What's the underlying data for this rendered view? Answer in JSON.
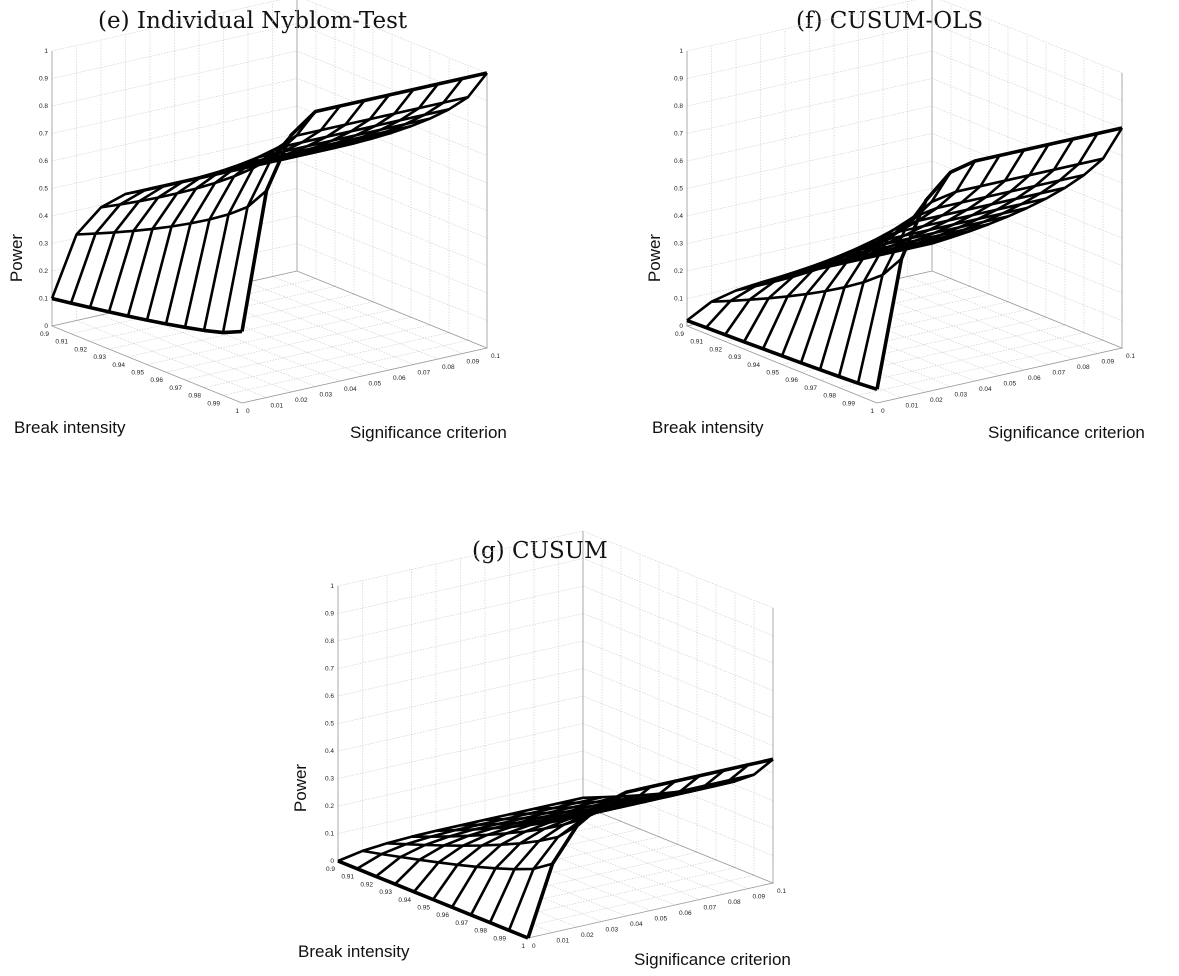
{
  "chart_data": [
    {
      "type": "surface",
      "title": "(e) Individual Nyblom-Test",
      "xlabel": "Break intensity",
      "ylabel": "Significance criterion",
      "zlabel": "Power",
      "x_ticks": [
        "1",
        "0.99",
        "0.98",
        "0.97",
        "0.96",
        "0.95",
        "0.94",
        "0.93",
        "0.92",
        "0.91",
        "0.9"
      ],
      "y_ticks": [
        "0",
        "0.01",
        "0.02",
        "0.03",
        "0.04",
        "0.05",
        "0.06",
        "0.07",
        "0.08",
        "0.09",
        "0.1"
      ],
      "z_ticks": [
        "0",
        "0.1",
        "0.2",
        "0.3",
        "0.4",
        "0.5",
        "0.6",
        "0.7",
        "0.8",
        "0.9",
        "1"
      ],
      "x": [
        1,
        0.99,
        0.98,
        0.97,
        0.96,
        0.95,
        0.94,
        0.93,
        0.92,
        0.91,
        0.9
      ],
      "y": [
        0,
        0.01,
        0.02,
        0.03,
        0.04,
        0.05,
        0.06,
        0.07,
        0.08,
        0.09,
        0.1
      ],
      "xlim": [
        0.9,
        1
      ],
      "ylim": [
        0,
        0.1
      ],
      "zlim": [
        0,
        1
      ],
      "surface_model": {
        "base": 0.26,
        "peak": 1.0,
        "low_corner": 0.1,
        "low_peak": 0.42,
        "bend": 0.3
      },
      "grid": true
    },
    {
      "type": "surface",
      "title": "(f) CUSUM-OLS",
      "xlabel": "Break intensity",
      "ylabel": "Significance criterion",
      "zlabel": "Power",
      "x_ticks": [
        "1",
        "0.99",
        "0.98",
        "0.97",
        "0.96",
        "0.95",
        "0.94",
        "0.93",
        "0.92",
        "0.91",
        "0.9"
      ],
      "y_ticks": [
        "0",
        "0.01",
        "0.02",
        "0.03",
        "0.04",
        "0.05",
        "0.06",
        "0.07",
        "0.08",
        "0.09",
        "0.1"
      ],
      "z_ticks": [
        "0",
        "0.1",
        "0.2",
        "0.3",
        "0.4",
        "0.5",
        "0.6",
        "0.7",
        "0.8",
        "0.9",
        "1"
      ],
      "x": [
        1,
        0.99,
        0.98,
        0.97,
        0.96,
        0.95,
        0.94,
        0.93,
        0.92,
        0.91,
        0.9
      ],
      "y": [
        0,
        0.01,
        0.02,
        0.03,
        0.04,
        0.05,
        0.06,
        0.07,
        0.08,
        0.09,
        0.1
      ],
      "xlim": [
        0.9,
        1
      ],
      "ylim": [
        0,
        0.1
      ],
      "zlim": [
        0,
        1
      ],
      "surface_model": {
        "base": 0.05,
        "peak": 0.8,
        "low_corner": 0.02,
        "low_peak": 0.1,
        "bend": 0.35
      },
      "grid": true
    },
    {
      "type": "surface",
      "title": "(g) CUSUM",
      "xlabel": "Break intensity",
      "ylabel": "Significance criterion",
      "zlabel": "Power",
      "x_ticks": [
        "1",
        "0.99",
        "0.98",
        "0.97",
        "0.96",
        "0.95",
        "0.94",
        "0.93",
        "0.92",
        "0.91",
        "0.9"
      ],
      "y_ticks": [
        "0",
        "0.01",
        "0.02",
        "0.03",
        "0.04",
        "0.05",
        "0.06",
        "0.07",
        "0.08",
        "0.09",
        "0.1"
      ],
      "z_ticks": [
        "0",
        "0.1",
        "0.2",
        "0.3",
        "0.4",
        "0.5",
        "0.6",
        "0.7",
        "0.8",
        "0.9",
        "1"
      ],
      "x": [
        1,
        0.99,
        0.98,
        0.97,
        0.96,
        0.95,
        0.94,
        0.93,
        0.92,
        0.91,
        0.9
      ],
      "y": [
        0,
        0.01,
        0.02,
        0.03,
        0.04,
        0.05,
        0.06,
        0.07,
        0.08,
        0.09,
        0.1
      ],
      "xlim": [
        0.9,
        1
      ],
      "ylim": [
        0,
        0.1
      ],
      "zlim": [
        0,
        1
      ],
      "surface_model": {
        "base": 0.0,
        "peak": 0.45,
        "low_corner": 0.0,
        "low_peak": 0.03,
        "bend": 0.4
      },
      "grid": true
    }
  ]
}
